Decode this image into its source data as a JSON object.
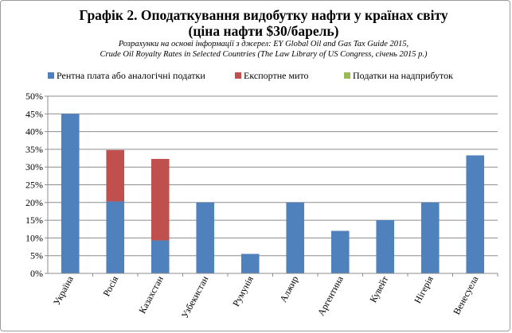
{
  "chart_data": {
    "type": "bar",
    "stacked": true,
    "title_line1": "Графік 2. Оподаткування видобутку нафти у країнах світу",
    "title_line2": "(ціна нафти $30/барель)",
    "source_line1": "Розрахунки на основі інформації з джерел: EY Global Oil and Gas Tax Guide 2015,",
    "source_line2": "Crude Oil Royalty Rates in Selected Countries (The Law Library of US Congress, січень 2015 р.)",
    "categories": [
      "Україна",
      "Росія",
      "Казахстан",
      "Узбекистан",
      "Румунія",
      "Алжир",
      "Аргентина",
      "Кувейт",
      "Нігерія",
      "Венесуела"
    ],
    "series": [
      {
        "name": "Рентна плата або аналогічні податки",
        "color": "#4F81BD",
        "values": [
          45,
          20.3,
          9.3,
          20,
          5.5,
          20,
          12,
          15,
          20,
          33.3
        ]
      },
      {
        "name": "Експортне мито",
        "color": "#C0504D",
        "values": [
          0,
          14.5,
          23,
          0,
          0,
          0,
          0,
          0,
          0,
          0
        ]
      },
      {
        "name": "Податки на надприбуток",
        "color": "#9BBB59",
        "values": [
          0,
          0,
          0,
          0,
          0,
          0,
          0,
          0,
          0,
          0
        ]
      }
    ],
    "ylim": [
      0,
      50
    ],
    "yticks": [
      0,
      5,
      10,
      15,
      20,
      25,
      30,
      35,
      40,
      45,
      50
    ],
    "ytick_labels": [
      "0%",
      "5%",
      "10%",
      "15%",
      "20%",
      "25%",
      "30%",
      "35%",
      "40%",
      "45%",
      "50%"
    ],
    "grid": true,
    "legend_position": "top"
  }
}
